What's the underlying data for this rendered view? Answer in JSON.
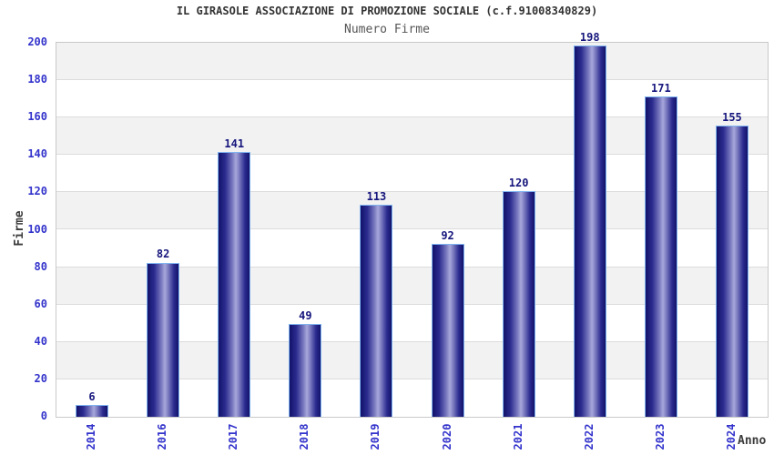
{
  "chart_data": {
    "type": "bar",
    "title": "IL GIRASOLE ASSOCIAZIONE DI PROMOZIONE SOCIALE (c.f.91008340829)",
    "subtitle": "Numero Firme",
    "xlabel": "Anno",
    "ylabel": "Firme",
    "categories": [
      "2014",
      "2016",
      "2017",
      "2018",
      "2019",
      "2020",
      "2021",
      "2022",
      "2023",
      "2024"
    ],
    "values": [
      6,
      82,
      141,
      49,
      113,
      92,
      120,
      198,
      171,
      155
    ],
    "ylim": [
      0,
      200
    ],
    "ytick_step": 20,
    "grid": "horizontal-bands-alternating",
    "legend": "none",
    "colors": {
      "bar_dark": "#12126a",
      "bar_light": "#a8a8dc",
      "bar_border": "#7fb3f0",
      "tick_label": "#3333cc",
      "value_label": "#16167d",
      "axis_title": "#3c3c3c",
      "subtitle": "#555555",
      "band_gray": "#f2f2f2",
      "band_white": "#ffffff",
      "grid_line": "#dcdcdc",
      "plot_border": "#c9c9c9"
    }
  }
}
